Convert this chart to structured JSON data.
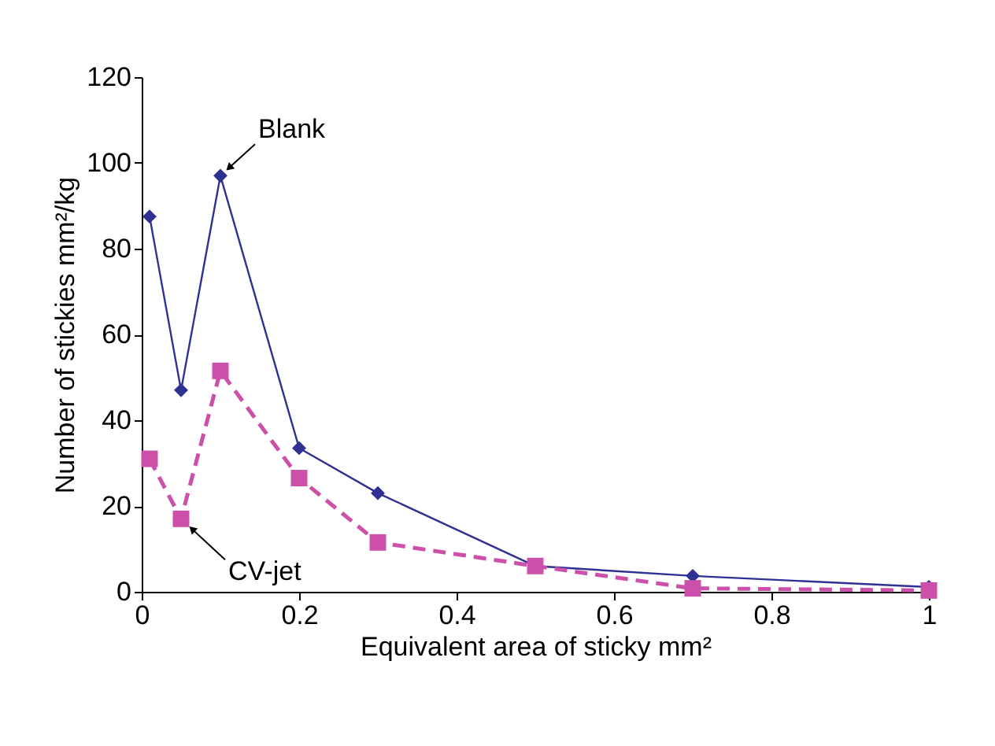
{
  "chart_data": {
    "type": "line",
    "xlabel": "Equivalent area of sticky mm²",
    "ylabel": "Number of stickies mm²/kg",
    "x": [
      0.01,
      0.05,
      0.1,
      0.2,
      0.3,
      0.5,
      0.7,
      1.0
    ],
    "series": [
      {
        "color": "#2e3192",
        "marker": "diamond",
        "line_style": "solid",
        "values": [
          87.5,
          47,
          97,
          33.5,
          23,
          6,
          3.7,
          1.1
        ]
      },
      {
        "color": "#cc4faa",
        "marker": "square",
        "line_style": "dashed",
        "values": [
          31,
          17,
          51.5,
          26.5,
          11.5,
          6,
          0.8,
          0.3
        ]
      }
    ],
    "annotations": [
      {
        "text": "Blank",
        "x": 0.1,
        "y": 97
      },
      {
        "text": "CV-jet",
        "x": 0.05,
        "y": 17
      }
    ],
    "xlim": [
      0,
      1
    ],
    "xticks": [
      0,
      0.2,
      0.4,
      0.6,
      0.8,
      1
    ],
    "ylim": [
      0,
      120
    ],
    "yticks": [
      0,
      20,
      40,
      60,
      80,
      100,
      120
    ],
    "grid": false
  }
}
